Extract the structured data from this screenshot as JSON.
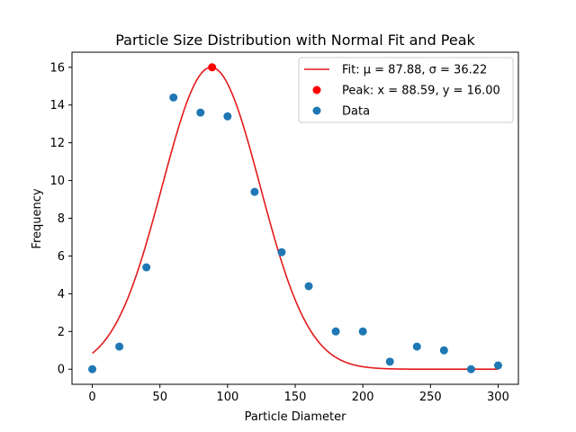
{
  "chart_data": {
    "type": "scatter",
    "title": "Particle Size Distribution with Normal Fit and Peak",
    "xlabel": "Particle Diameter",
    "ylabel": "Frequency",
    "xlim": [
      -15,
      315
    ],
    "ylim": [
      -0.8,
      16.8
    ],
    "xticks": [
      0,
      50,
      100,
      150,
      200,
      250,
      300
    ],
    "yticks": [
      0,
      2,
      4,
      6,
      8,
      10,
      12,
      14,
      16
    ],
    "grid": false,
    "legend_position": "top-right",
    "series": [
      {
        "name": "Data",
        "kind": "scatter",
        "color": "#1f77b4",
        "x": [
          0,
          20,
          40,
          60,
          80,
          100,
          120,
          140,
          160,
          180,
          200,
          220,
          240,
          260,
          280,
          300
        ],
        "y": [
          0,
          1.2,
          5.4,
          14.4,
          13.6,
          13.4,
          9.4,
          6.2,
          4.4,
          2.0,
          2.0,
          0.4,
          1.2,
          1.0,
          0,
          0.2
        ]
      },
      {
        "name": "Fit: μ = 87.88, σ = 36.22",
        "kind": "line",
        "color": "#e41a1c",
        "mu": 87.88,
        "sigma": 36.22,
        "amplitude": 16.0,
        "x_range": [
          0,
          300
        ]
      },
      {
        "name": "Peak: x = 88.59, y = 16.00",
        "kind": "point",
        "color": "#ff0000",
        "x": 88.59,
        "y": 16.0
      }
    ]
  }
}
